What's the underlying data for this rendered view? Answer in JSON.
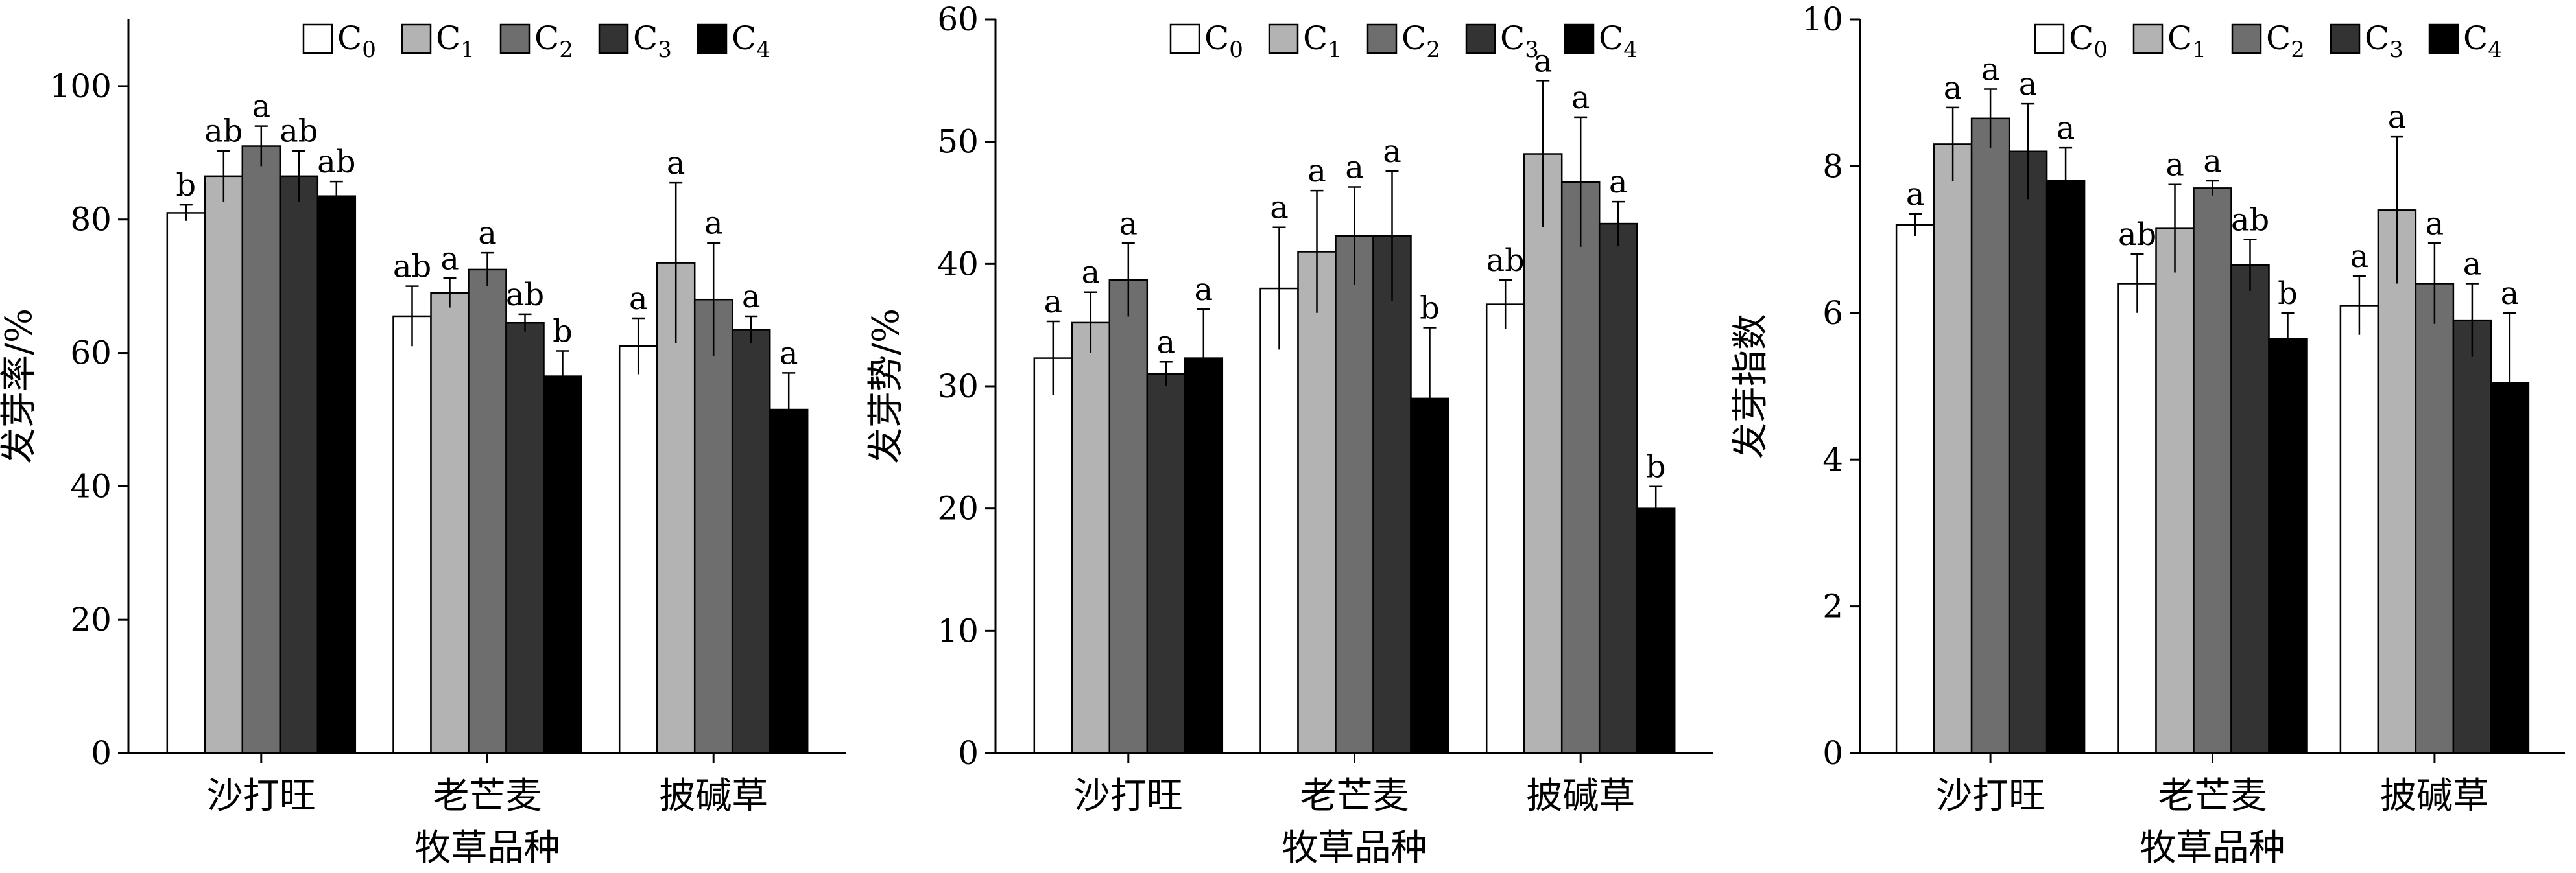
{
  "colors": {
    "C0": "#ffffff",
    "C1": "#b3b3b3",
    "C2": "#6e6e6e",
    "C3": "#333333",
    "C4": "#000000",
    "stroke": "#000000"
  },
  "legend": [
    "C0",
    "C1",
    "C2",
    "C3",
    "C4"
  ],
  "chart_data": [
    {
      "type": "bar",
      "categories": [
        "沙打旺",
        "老芒麦",
        "披碱草"
      ],
      "xlabel": "牧草品种",
      "ylabel": "发芽率/%",
      "ylim": [
        0,
        110
      ],
      "yticks": [
        0,
        20,
        40,
        60,
        80,
        100
      ],
      "grid": false,
      "legend_position": "top-right",
      "series": [
        {
          "name": "C0",
          "values": [
            81,
            65.5,
            61
          ],
          "errors": [
            1.2,
            4.5,
            4.2
          ],
          "letters": [
            "b",
            "ab",
            "a"
          ]
        },
        {
          "name": "C1",
          "values": [
            86.5,
            69,
            73.5
          ],
          "errors": [
            3.8,
            2.2,
            12
          ],
          "letters": [
            "ab",
            "a",
            "a"
          ]
        },
        {
          "name": "C2",
          "values": [
            91,
            72.5,
            68
          ],
          "errors": [
            3,
            2.5,
            8.5
          ],
          "letters": [
            "a",
            "a",
            "a"
          ]
        },
        {
          "name": "C3",
          "values": [
            86.5,
            64.5,
            63.5
          ],
          "errors": [
            3.8,
            1.3,
            2
          ],
          "letters": [
            "ab",
            "ab",
            "a"
          ]
        },
        {
          "name": "C4",
          "values": [
            83.5,
            56.5,
            51.5
          ],
          "errors": [
            2.2,
            3.8,
            5.5
          ],
          "letters": [
            "ab",
            "b",
            "a"
          ]
        }
      ]
    },
    {
      "type": "bar",
      "categories": [
        "沙打旺",
        "老芒麦",
        "披碱草"
      ],
      "xlabel": "牧草品种",
      "ylabel": "发芽势/%",
      "ylim": [
        0,
        60
      ],
      "yticks": [
        0,
        10,
        20,
        30,
        40,
        50,
        60
      ],
      "grid": false,
      "legend_position": "top-right",
      "series": [
        {
          "name": "C0",
          "values": [
            32.3,
            38,
            36.7
          ],
          "errors": [
            3,
            5,
            2
          ],
          "letters": [
            "a",
            "a",
            "ab"
          ]
        },
        {
          "name": "C1",
          "values": [
            35.2,
            41,
            49
          ],
          "errors": [
            2.5,
            5,
            6
          ],
          "letters": [
            "a",
            "a",
            "a"
          ]
        },
        {
          "name": "C2",
          "values": [
            38.7,
            42.3,
            46.7
          ],
          "errors": [
            3,
            4,
            5.3
          ],
          "letters": [
            "a",
            "a",
            "a"
          ]
        },
        {
          "name": "C3",
          "values": [
            31,
            42.3,
            43.3
          ],
          "errors": [
            1,
            5.3,
            1.8
          ],
          "letters": [
            "a",
            "a",
            "a"
          ]
        },
        {
          "name": "C4",
          "values": [
            32.3,
            29,
            20
          ],
          "errors": [
            4,
            5.8,
            1.8
          ],
          "letters": [
            "a",
            "b",
            "b"
          ]
        }
      ]
    },
    {
      "type": "bar",
      "categories": [
        "沙打旺",
        "老芒麦",
        "披碱草"
      ],
      "xlabel": "牧草品种",
      "ylabel": "发芽指数",
      "ylim": [
        0,
        10
      ],
      "yticks": [
        0,
        2,
        4,
        6,
        8,
        10
      ],
      "grid": false,
      "legend_position": "top-right",
      "series": [
        {
          "name": "C0",
          "values": [
            7.2,
            6.4,
            6.1
          ],
          "errors": [
            0.15,
            0.4,
            0.4
          ],
          "letters": [
            "a",
            "ab",
            "a"
          ]
        },
        {
          "name": "C1",
          "values": [
            8.3,
            7.15,
            7.4
          ],
          "errors": [
            0.5,
            0.6,
            1
          ],
          "letters": [
            "a",
            "a",
            "a"
          ]
        },
        {
          "name": "C2",
          "values": [
            8.65,
            7.7,
            6.4
          ],
          "errors": [
            0.4,
            0.1,
            0.55
          ],
          "letters": [
            "a",
            "a",
            "a"
          ]
        },
        {
          "name": "C3",
          "values": [
            8.2,
            6.65,
            5.9
          ],
          "errors": [
            0.65,
            0.35,
            0.5
          ],
          "letters": [
            "a",
            "ab",
            "a"
          ]
        },
        {
          "name": "C4",
          "values": [
            7.8,
            5.65,
            5.05
          ],
          "errors": [
            0.45,
            0.35,
            0.95
          ],
          "letters": [
            "a",
            "b",
            "a"
          ]
        }
      ]
    }
  ]
}
